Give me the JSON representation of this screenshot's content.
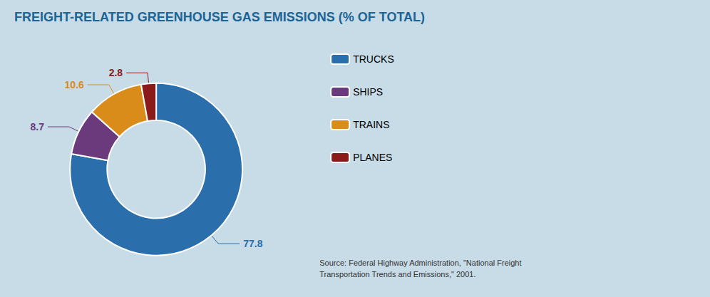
{
  "chart_data": {
    "type": "donut",
    "title": "FREIGHT-RELATED GREENHOUSE GAS EMISSIONS (% OF TOTAL)",
    "categories": [
      "TRUCKS",
      "SHIPS",
      "TRAINS",
      "PLANES"
    ],
    "values": [
      77.8,
      8.7,
      10.6,
      2.8
    ],
    "colors": [
      "#2a6eab",
      "#6b3a7d",
      "#d98c1a",
      "#8b1a1a"
    ],
    "data_labels": true,
    "legend": "right",
    "annotations": [
      "Source: Federal Highway Administration, \"National Freight\nTransportation Trends and Emissions,\" 2001."
    ]
  }
}
